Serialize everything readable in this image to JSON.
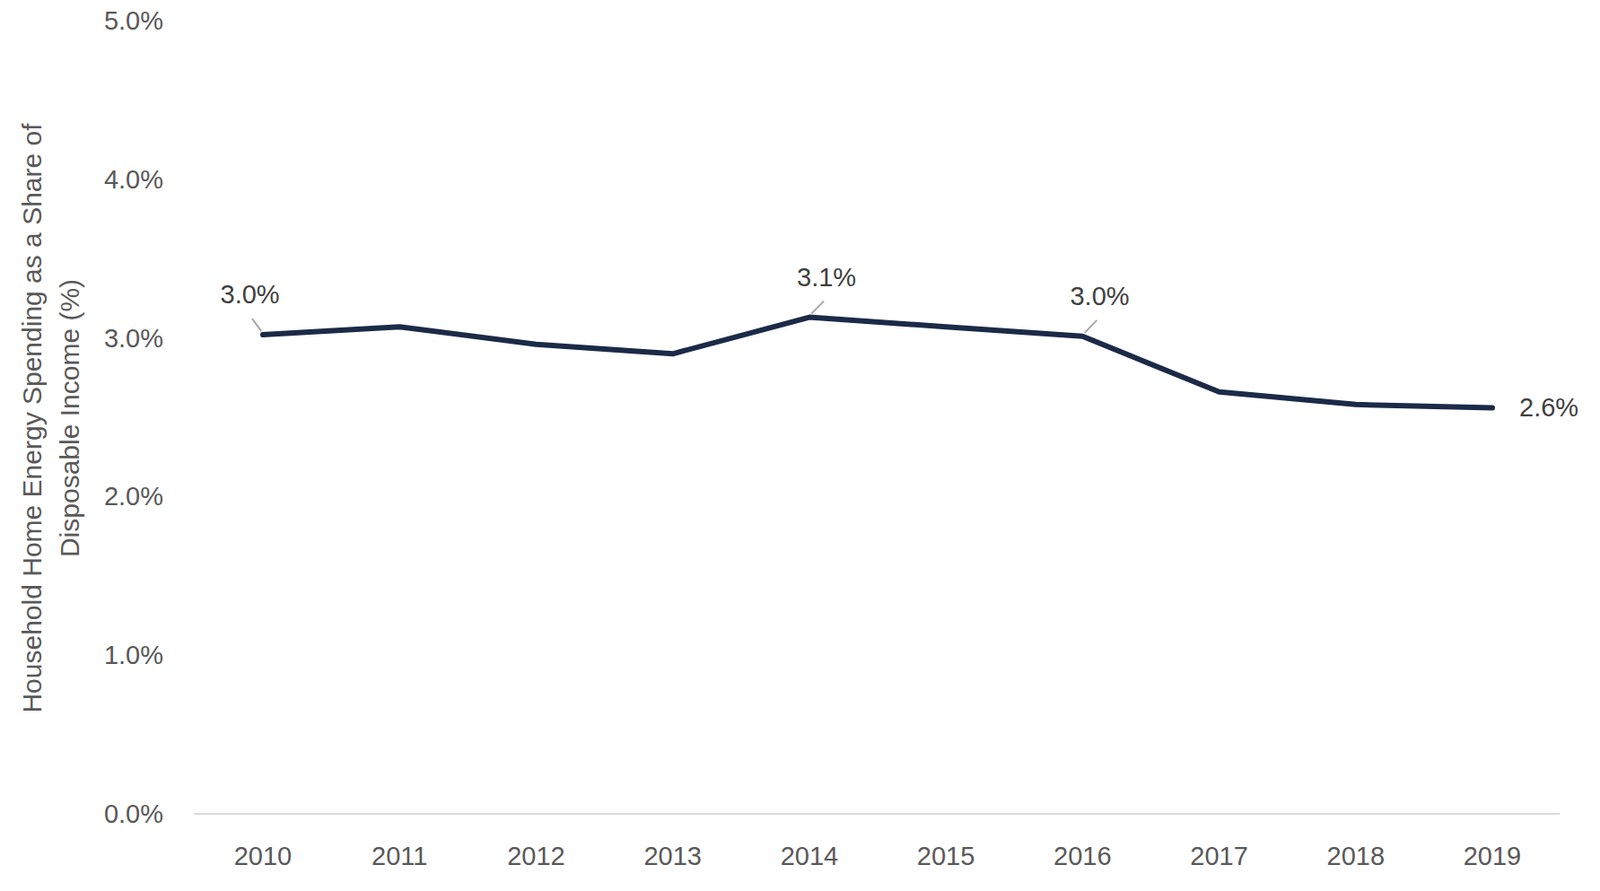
{
  "chart_data": {
    "type": "line",
    "y_label": [
      "Household Home Energy Spending as a Share of",
      "Disposable Income (%)"
    ],
    "categories": [
      "2010",
      "2011",
      "2012",
      "2013",
      "2014",
      "2015",
      "2016",
      "2017",
      "2018",
      "2019"
    ],
    "values": [
      3.02,
      3.07,
      2.96,
      2.9,
      3.13,
      3.07,
      3.01,
      2.66,
      2.58,
      2.56
    ],
    "value_labels": [
      "3.0%",
      null,
      null,
      null,
      "3.1%",
      null,
      "3.0%",
      null,
      null,
      "2.6%"
    ],
    "data_labels": true,
    "color": "#1b2a47",
    "ylim": [
      0,
      5
    ],
    "yticks": [
      {
        "value": 0,
        "label": "0.0%"
      },
      {
        "value": 1,
        "label": "1.0%"
      },
      {
        "value": 2,
        "label": "2.0%"
      },
      {
        "value": 3,
        "label": "3.0%"
      },
      {
        "value": 4,
        "label": "4.0%"
      },
      {
        "value": 5,
        "label": "5.0%"
      }
    ],
    "grid": false
  }
}
